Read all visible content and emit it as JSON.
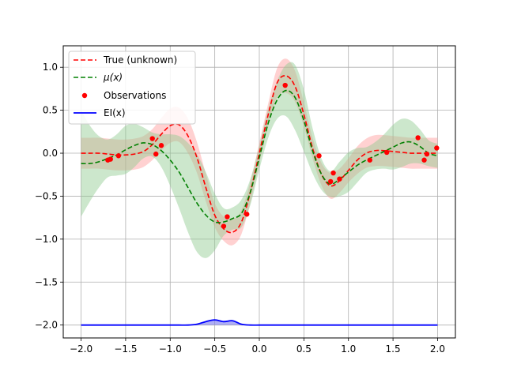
{
  "chart_data": {
    "type": "line",
    "title": "",
    "xlabel": "",
    "ylabel": "",
    "xlim": [
      -2.2,
      2.2
    ],
    "ylim": [
      -2.15,
      1.25
    ],
    "grid": true,
    "legend_placement": "top-left",
    "xticks": [
      "−2.0",
      "−1.5",
      "−1.0",
      "−0.5",
      "0.0",
      "0.5",
      "1.0",
      "1.5",
      "2.0"
    ],
    "yticks": [
      "1.0",
      "0.5",
      "0.0",
      "−0.5",
      "−1.0",
      "−1.5",
      "−2.0"
    ],
    "xtick_values": [
      -2.0,
      -1.5,
      -1.0,
      -0.5,
      0.0,
      0.5,
      1.0,
      1.5,
      2.0
    ],
    "ytick_values": [
      1.0,
      0.5,
      0.0,
      -0.5,
      -1.0,
      -1.5,
      -2.0
    ],
    "legend": [
      {
        "label": "True (unknown)",
        "style": "red-dashed"
      },
      {
        "label": "μ(x)",
        "style": "green-dashed"
      },
      {
        "label": "Observations",
        "style": "red-dot"
      },
      {
        "label": "EI(x)",
        "style": "blue-solid"
      }
    ],
    "colors": {
      "true": "#ff0000",
      "mu": "#008000",
      "obs": "#ff0000",
      "ei": "#0000ff",
      "band_red": "#ff9999",
      "band_green": "#8fc98f",
      "ei_fill": "#7777ee"
    },
    "x": [
      -2.0,
      -1.9,
      -1.8,
      -1.7,
      -1.6,
      -1.5,
      -1.4,
      -1.3,
      -1.2,
      -1.1,
      -1.0,
      -0.9,
      -0.8,
      -0.7,
      -0.6,
      -0.5,
      -0.4,
      -0.3,
      -0.2,
      -0.1,
      0.0,
      0.1,
      0.2,
      0.3,
      0.4,
      0.5,
      0.6,
      0.7,
      0.8,
      0.9,
      1.0,
      1.1,
      1.2,
      1.3,
      1.4,
      1.5,
      1.6,
      1.7,
      1.8,
      1.9,
      2.0
    ],
    "series": [
      {
        "name": "True (unknown)",
        "values": [
          0.0,
          0.0,
          0.0,
          -0.01,
          -0.02,
          -0.02,
          -0.01,
          0.02,
          0.1,
          0.22,
          0.32,
          0.33,
          0.2,
          -0.05,
          -0.4,
          -0.72,
          -0.88,
          -0.92,
          -0.8,
          -0.45,
          0.0,
          0.45,
          0.82,
          0.9,
          0.78,
          0.45,
          0.05,
          -0.25,
          -0.38,
          -0.32,
          -0.2,
          -0.08,
          0.0,
          0.03,
          0.03,
          0.02,
          0.01,
          0.0,
          0.0,
          0.0,
          0.0
        ],
        "band": [
          0.18,
          0.18,
          0.18,
          0.18,
          0.18,
          0.18,
          0.18,
          0.18,
          0.18,
          0.19,
          0.2,
          0.2,
          0.2,
          0.18,
          0.16,
          0.14,
          0.14,
          0.15,
          0.14,
          0.12,
          0.12,
          0.13,
          0.17,
          0.2,
          0.18,
          0.14,
          0.12,
          0.13,
          0.15,
          0.14,
          0.14,
          0.16,
          0.17,
          0.18,
          0.18,
          0.18,
          0.18,
          0.18,
          0.18,
          0.18,
          0.18
        ]
      },
      {
        "name": "μ(x)",
        "values": [
          -0.12,
          -0.12,
          -0.1,
          -0.06,
          -0.02,
          0.04,
          0.09,
          0.12,
          0.1,
          0.03,
          -0.08,
          -0.22,
          -0.4,
          -0.58,
          -0.72,
          -0.8,
          -0.8,
          -0.76,
          -0.7,
          -0.45,
          -0.05,
          0.35,
          0.62,
          0.73,
          0.65,
          0.38,
          0.02,
          -0.25,
          -0.36,
          -0.3,
          -0.22,
          -0.14,
          -0.08,
          -0.03,
          0.02,
          0.07,
          0.12,
          0.13,
          0.08,
          0.0,
          -0.03
        ],
        "band": [
          0.62,
          0.44,
          0.3,
          0.22,
          0.24,
          0.28,
          0.25,
          0.18,
          0.14,
          0.19,
          0.3,
          0.42,
          0.52,
          0.57,
          0.5,
          0.33,
          0.16,
          0.13,
          0.16,
          0.15,
          0.14,
          0.17,
          0.22,
          0.3,
          0.38,
          0.36,
          0.26,
          0.18,
          0.15,
          0.2,
          0.23,
          0.2,
          0.15,
          0.16,
          0.2,
          0.26,
          0.28,
          0.25,
          0.2,
          0.15,
          0.14
        ]
      },
      {
        "name": "EI(x)",
        "values": [
          -2.0,
          -2.0,
          -2.0,
          -2.0,
          -2.0,
          -2.0,
          -2.0,
          -2.0,
          -2.0,
          -2.0,
          -2.0,
          -2.0,
          -2.0,
          -1.99,
          -1.96,
          -1.94,
          -1.96,
          -1.95,
          -1.99,
          -2.0,
          -2.0,
          -2.0,
          -2.0,
          -2.0,
          -2.0,
          -2.0,
          -2.0,
          -2.0,
          -2.0,
          -2.0,
          -2.0,
          -2.0,
          -2.0,
          -2.0,
          -2.0,
          -2.0,
          -2.0,
          -2.0,
          -2.0,
          -2.0,
          -2.0
        ]
      }
    ],
    "observations": [
      {
        "x": -1.7,
        "y": -0.08
      },
      {
        "x": -1.67,
        "y": -0.07
      },
      {
        "x": -1.58,
        "y": -0.03
      },
      {
        "x": -1.2,
        "y": 0.17
      },
      {
        "x": -1.16,
        "y": -0.01
      },
      {
        "x": -1.1,
        "y": 0.09
      },
      {
        "x": -0.4,
        "y": -0.85
      },
      {
        "x": -0.36,
        "y": -0.74
      },
      {
        "x": -0.14,
        "y": -0.71
      },
      {
        "x": 0.29,
        "y": 0.79
      },
      {
        "x": 0.67,
        "y": -0.03
      },
      {
        "x": 0.8,
        "y": -0.33
      },
      {
        "x": 0.83,
        "y": -0.23
      },
      {
        "x": 0.9,
        "y": -0.3
      },
      {
        "x": 1.24,
        "y": -0.08
      },
      {
        "x": 1.43,
        "y": 0.01
      },
      {
        "x": 1.78,
        "y": 0.18
      },
      {
        "x": 1.85,
        "y": -0.08
      },
      {
        "x": 1.88,
        "y": -0.01
      },
      {
        "x": 1.99,
        "y": 0.06
      }
    ]
  }
}
